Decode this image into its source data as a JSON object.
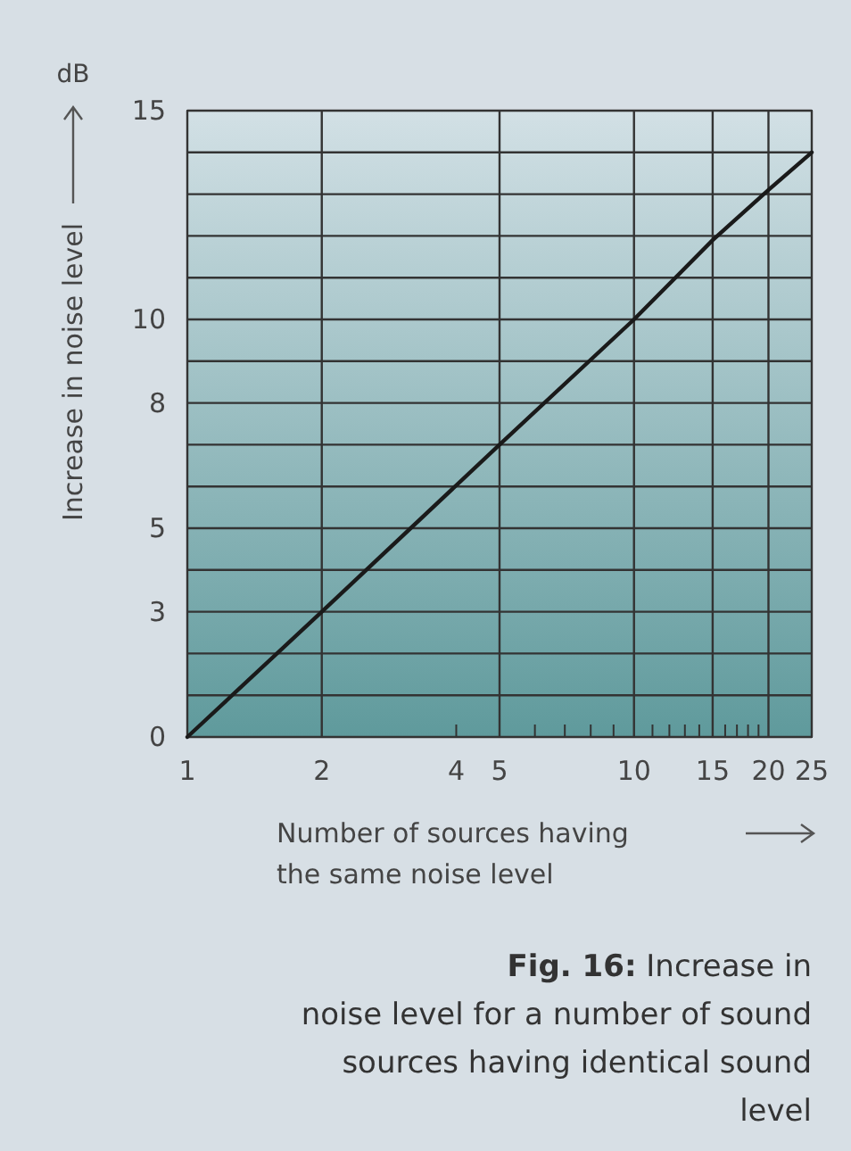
{
  "chart_data": {
    "type": "line",
    "title": "Fig. 16: Increase in noise level for a number of sound sources having identical sound level",
    "xlabel": "Number of sources having the same noise level",
    "ylabel": "Increase in noise level",
    "annotations": [
      "dB"
    ],
    "log": "x",
    "x": [
      1,
      2,
      5,
      10,
      15,
      20,
      25
    ],
    "series": [
      {
        "color": "#1a1a1a",
        "values": [
          0,
          3,
          7,
          10,
          11.9,
          13.1,
          14
        ]
      }
    ],
    "xlim": [
      1,
      25
    ],
    "xticks": [
      1,
      2,
      4,
      5,
      {
        "value": 6,
        "label": null
      },
      {
        "value": 7,
        "label": null
      },
      {
        "value": 8,
        "label": null
      },
      {
        "value": 9,
        "label": null
      },
      10,
      {
        "value": 11,
        "label": null
      },
      {
        "value": 12,
        "label": null
      },
      {
        "value": 13,
        "label": null
      },
      {
        "value": 14,
        "label": null
      },
      15,
      {
        "value": 16,
        "label": null
      },
      {
        "value": 17,
        "label": null
      },
      {
        "value": 18,
        "label": null
      },
      {
        "value": 19,
        "label": null
      },
      20,
      25
    ],
    "ylim": [
      0,
      15
    ],
    "yticks": [
      0,
      {
        "value": 1,
        "label": null
      },
      {
        "value": 2,
        "label": null
      },
      3,
      {
        "value": 4,
        "label": null
      },
      5,
      {
        "value": 6,
        "label": null
      },
      {
        "value": 7,
        "label": null
      },
      8,
      {
        "value": 9,
        "label": null
      },
      10,
      {
        "value": 11,
        "label": null
      },
      {
        "value": 12,
        "label": null
      },
      {
        "value": 13,
        "label": null
      },
      {
        "value": 14,
        "label": null
      },
      15
    ],
    "grid": true,
    "marker": "none",
    "line_style": "solid"
  }
}
